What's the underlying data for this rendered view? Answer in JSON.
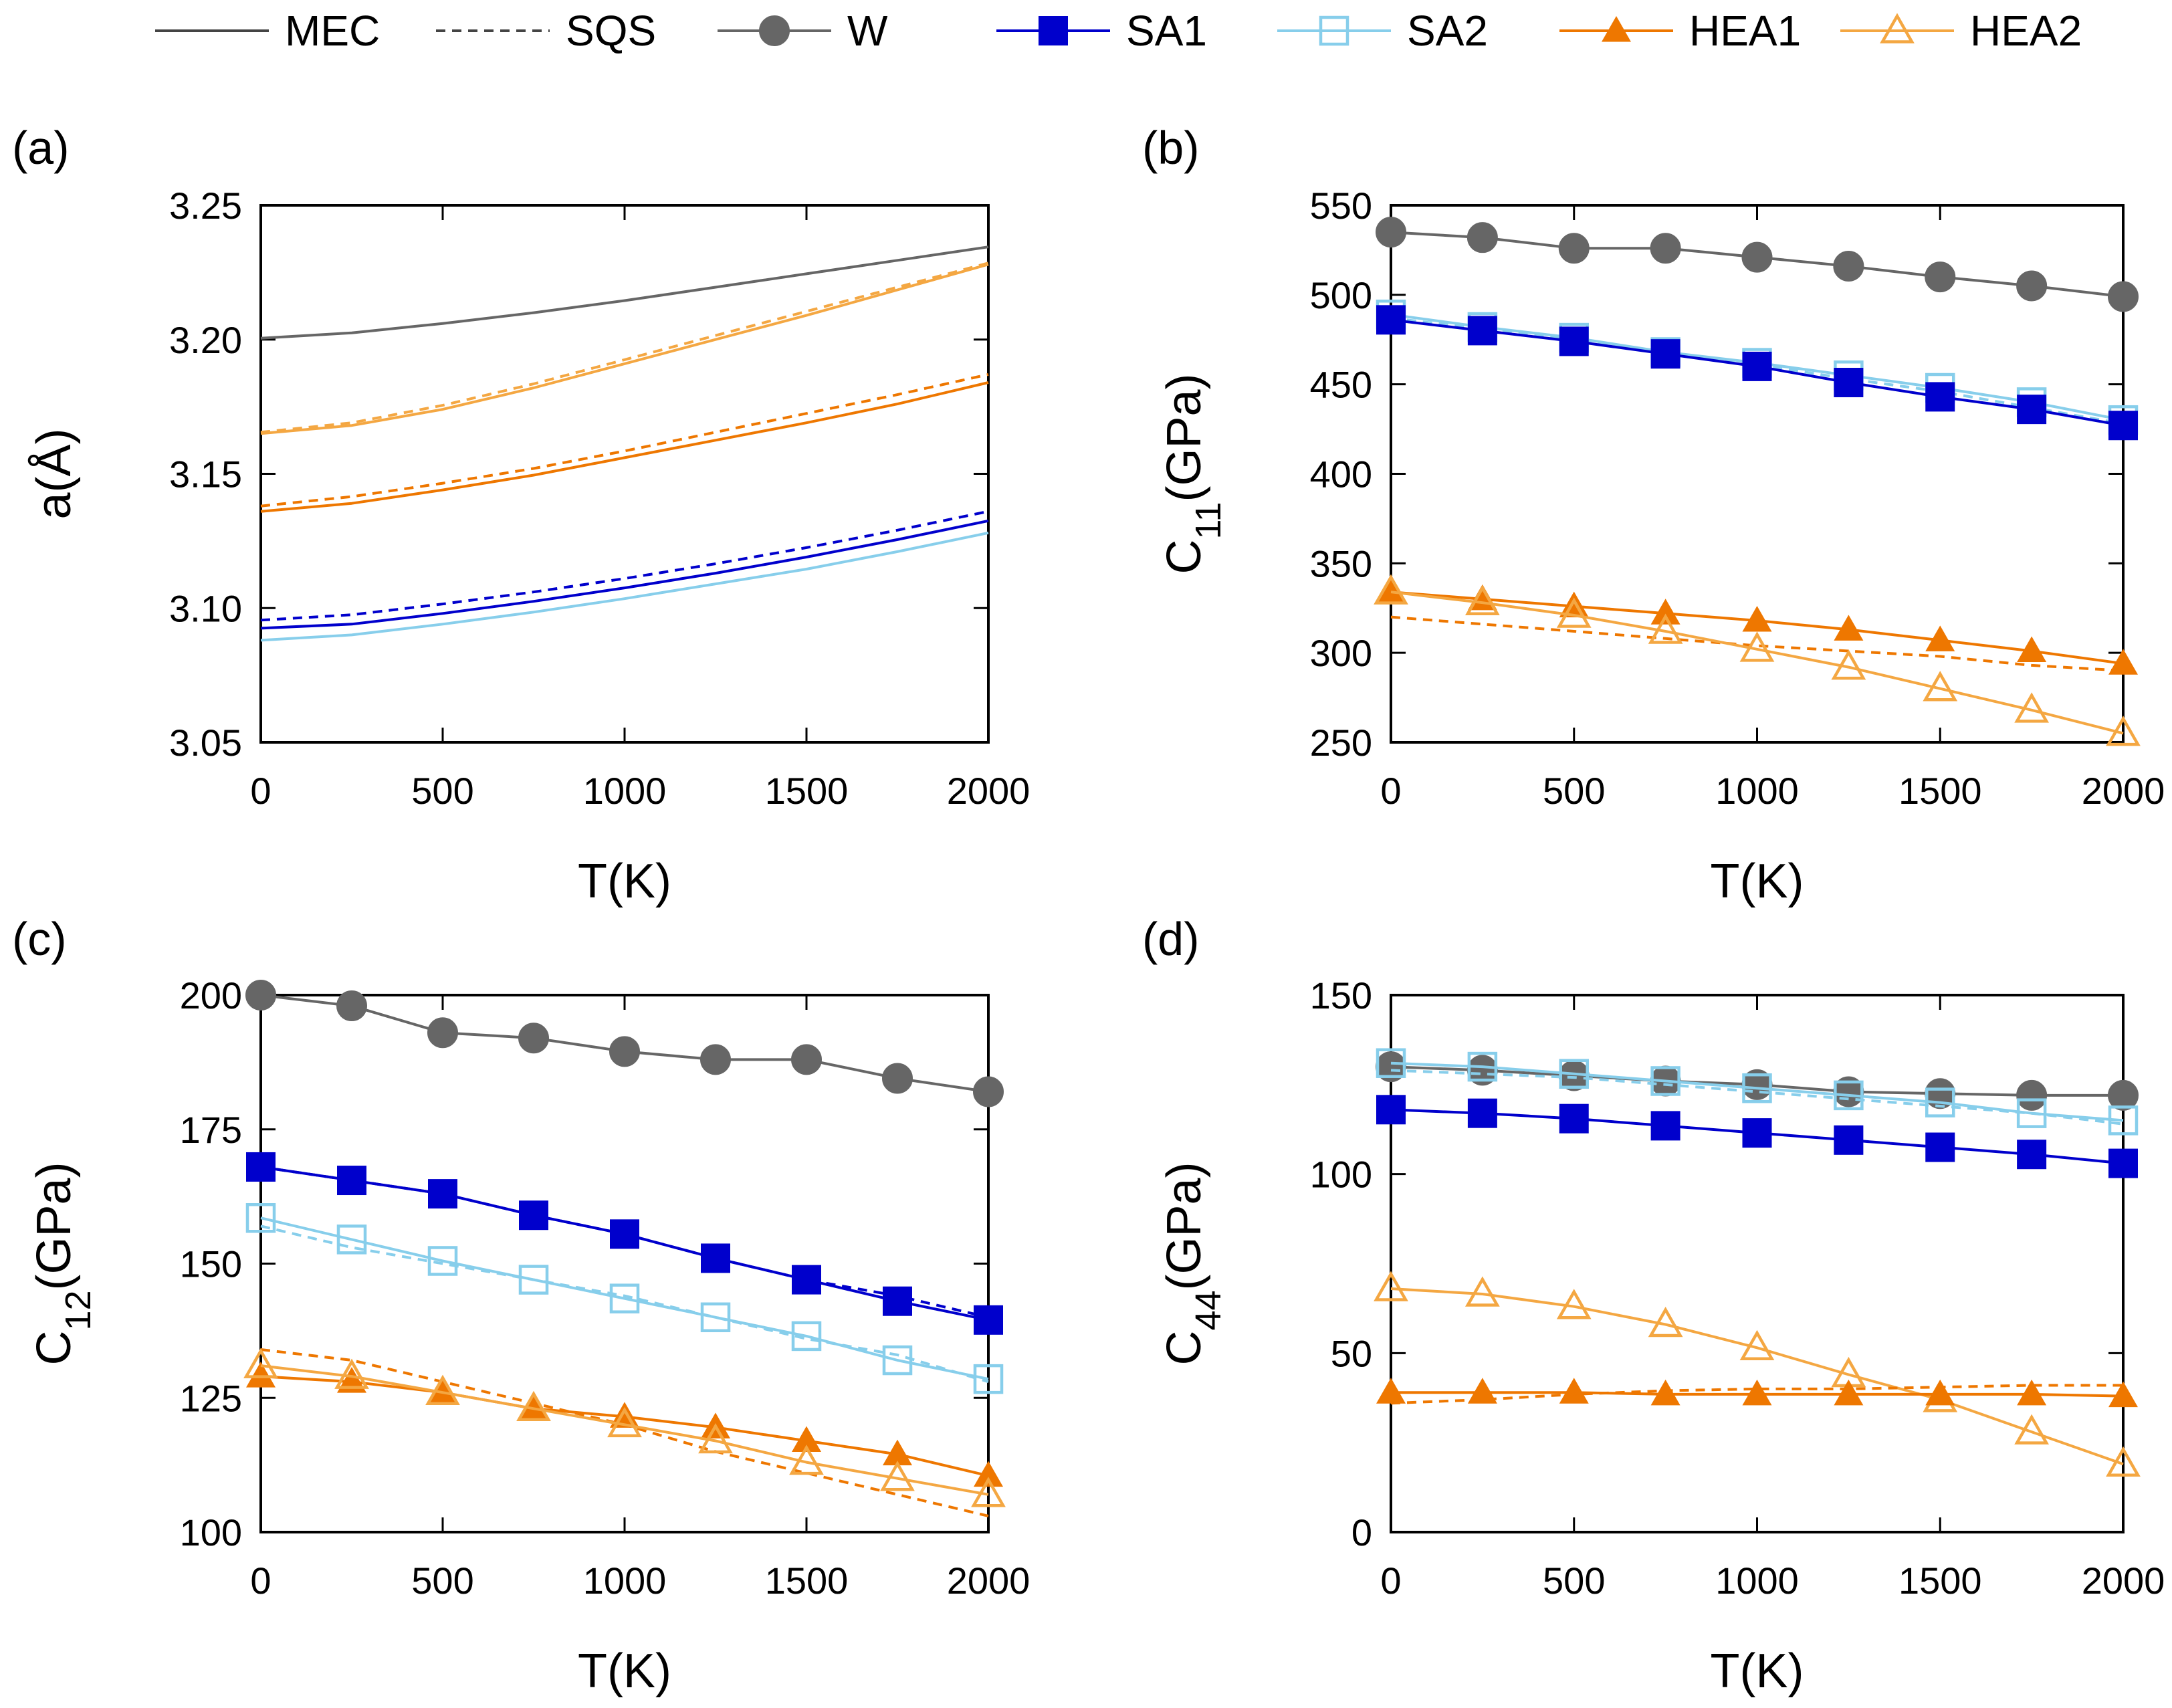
{
  "legend": {
    "items": [
      {
        "key": "MEC",
        "label": "MEC",
        "color": "#444444",
        "dash": false,
        "marker": "none"
      },
      {
        "key": "SQS",
        "label": "SQS",
        "color": "#444444",
        "dash": true,
        "marker": "none"
      },
      {
        "key": "W",
        "label": "W",
        "color": "#666666",
        "dash": false,
        "marker": "circle"
      },
      {
        "key": "SA1",
        "label": "SA1",
        "color": "#0000cc",
        "dash": false,
        "marker": "square"
      },
      {
        "key": "SA2",
        "label": "SA2",
        "color": "#87ceeb",
        "dash": false,
        "marker": "square-open"
      },
      {
        "key": "HEA1",
        "label": "HEA1",
        "color": "#ee7700",
        "dash": false,
        "marker": "triangle"
      },
      {
        "key": "HEA2",
        "label": "HEA2",
        "color": "#f4a742",
        "dash": false,
        "marker": "triangle-open"
      }
    ]
  },
  "chart_data": [
    {
      "panel": "(a)",
      "type": "line",
      "xlabel": "T(K)",
      "ylabel": "a(Å)",
      "xlim": [
        0,
        2000
      ],
      "ylim": [
        3.05,
        3.25
      ],
      "xticks": [
        "0",
        "500",
        "1000",
        "1500",
        "2000"
      ],
      "yticks": [
        "3.05",
        "3.10",
        "3.15",
        "3.20",
        "3.25"
      ],
      "x": [
        0,
        250,
        500,
        750,
        1000,
        1250,
        1500,
        1750,
        2000
      ],
      "series": [
        {
          "name": "W MEC",
          "color": "#666666",
          "dash": false,
          "marker": "none",
          "values": [
            3.2005,
            3.2025,
            3.206,
            3.21,
            3.2145,
            3.2195,
            3.2245,
            3.2295,
            3.2345
          ]
        },
        {
          "name": "HEA2 MEC",
          "color": "#f4a742",
          "dash": false,
          "marker": "none",
          "values": [
            3.165,
            3.168,
            3.174,
            3.182,
            3.191,
            3.2,
            3.209,
            3.2185,
            3.228
          ]
        },
        {
          "name": "HEA2 SQS",
          "color": "#f4a742",
          "dash": true,
          "marker": "none",
          "values": [
            3.1655,
            3.169,
            3.1755,
            3.1835,
            3.1925,
            3.2015,
            3.2105,
            3.2195,
            3.2285
          ]
        },
        {
          "name": "HEA1 MEC",
          "color": "#ee7700",
          "dash": false,
          "marker": "none",
          "values": [
            3.136,
            3.139,
            3.144,
            3.1495,
            3.156,
            3.1625,
            3.169,
            3.176,
            3.184
          ]
        },
        {
          "name": "HEA1 SQS",
          "color": "#ee7700",
          "dash": true,
          "marker": "none",
          "values": [
            3.138,
            3.1415,
            3.1465,
            3.152,
            3.1585,
            3.1655,
            3.1725,
            3.1795,
            3.187
          ]
        },
        {
          "name": "SA1 MEC",
          "color": "#0000cc",
          "dash": false,
          "marker": "none",
          "values": [
            3.0925,
            3.094,
            3.098,
            3.1025,
            3.1075,
            3.113,
            3.119,
            3.1255,
            3.1325
          ]
        },
        {
          "name": "SA1 SQS",
          "color": "#0000cc",
          "dash": true,
          "marker": "none",
          "values": [
            3.0955,
            3.0975,
            3.1015,
            3.106,
            3.111,
            3.1165,
            3.1225,
            3.129,
            3.136
          ]
        },
        {
          "name": "SA2 MEC",
          "color": "#87ceeb",
          "dash": false,
          "marker": "none",
          "values": [
            3.088,
            3.09,
            3.094,
            3.0985,
            3.1035,
            3.109,
            3.1145,
            3.121,
            3.128
          ]
        }
      ]
    },
    {
      "panel": "(b)",
      "type": "line",
      "xlabel": "T(K)",
      "ylabel": "C",
      "ylabel_sub": "11",
      "ylabel_suffix": "(GPa)",
      "xlim": [
        0,
        2000
      ],
      "ylim": [
        250,
        550
      ],
      "xticks": [
        "0",
        "500",
        "1000",
        "1500",
        "2000"
      ],
      "yticks": [
        "250",
        "300",
        "350",
        "400",
        "450",
        "500",
        "550"
      ],
      "x": [
        0,
        250,
        500,
        750,
        1000,
        1250,
        1500,
        1750,
        2000
      ],
      "series": [
        {
          "name": "W",
          "color": "#666666",
          "dash": false,
          "marker": "circle",
          "values": [
            535,
            532,
            526,
            526,
            521,
            516,
            510,
            505,
            499
          ]
        },
        {
          "name": "SA2 MEC",
          "color": "#87ceeb",
          "dash": false,
          "marker": "square-open",
          "values": [
            489,
            482,
            476,
            468,
            462,
            455,
            448,
            440,
            430
          ]
        },
        {
          "name": "SA2 SQS",
          "color": "#87ceeb",
          "dash": true,
          "marker": "none",
          "values": [
            487,
            481,
            475,
            467,
            461,
            453,
            446,
            437,
            428
          ]
        },
        {
          "name": "SA1 MEC",
          "color": "#0000cc",
          "dash": false,
          "marker": "square",
          "values": [
            486,
            480,
            474,
            467,
            460,
            451,
            443,
            436,
            427
          ]
        },
        {
          "name": "HEA1 MEC",
          "color": "#ee7700",
          "dash": false,
          "marker": "triangle",
          "values": [
            334,
            330,
            326,
            322,
            318,
            313,
            307,
            301,
            294
          ]
        },
        {
          "name": "HEA1 SQS",
          "color": "#ee7700",
          "dash": true,
          "marker": "none",
          "values": [
            320,
            316,
            312,
            308,
            304,
            301,
            298,
            293,
            290
          ]
        },
        {
          "name": "HEA2 MEC",
          "color": "#f4a742",
          "dash": false,
          "marker": "triangle-open",
          "values": [
            334,
            328,
            321,
            312,
            302,
            292,
            280,
            268,
            255
          ]
        }
      ]
    },
    {
      "panel": "(c)",
      "type": "line",
      "xlabel": "T(K)",
      "ylabel": "C",
      "ylabel_sub": "12",
      "ylabel_suffix": "(GPa)",
      "xlim": [
        0,
        2000
      ],
      "ylim": [
        100,
        200
      ],
      "xticks": [
        "0",
        "500",
        "1000",
        "1500",
        "2000"
      ],
      "yticks": [
        "100",
        "125",
        "150",
        "175",
        "200"
      ],
      "x": [
        0,
        250,
        500,
        750,
        1000,
        1250,
        1500,
        1750,
        2000
      ],
      "series": [
        {
          "name": "W",
          "color": "#666666",
          "dash": false,
          "marker": "circle",
          "values": [
            200,
            198,
            193,
            192,
            189.5,
            188,
            188,
            184.5,
            182
          ]
        },
        {
          "name": "SA1 MEC",
          "color": "#0000cc",
          "dash": false,
          "marker": "square",
          "values": [
            168,
            165.5,
            163,
            159,
            155.5,
            151,
            147,
            143,
            139.5
          ]
        },
        {
          "name": "SA1 SQS",
          "color": "#0000cc",
          "dash": true,
          "marker": "none",
          "values": [
            168,
            165.5,
            163,
            159,
            155.5,
            151,
            147,
            144,
            140
          ]
        },
        {
          "name": "SA2 MEC",
          "color": "#87ceeb",
          "dash": false,
          "marker": "square-open",
          "values": [
            158.5,
            154.5,
            150.5,
            147,
            143.5,
            140,
            136.5,
            132,
            128.5
          ]
        },
        {
          "name": "SA2 SQS",
          "color": "#87ceeb",
          "dash": true,
          "marker": "none",
          "values": [
            157,
            153,
            150,
            147,
            144,
            140,
            136,
            133,
            128
          ]
        },
        {
          "name": "HEA1 MEC",
          "color": "#ee7700",
          "dash": false,
          "marker": "triangle",
          "values": [
            129,
            128,
            126,
            123,
            121.5,
            119.5,
            117,
            114.5,
            110.5
          ]
        },
        {
          "name": "HEA1 SQS",
          "color": "#ee7700",
          "dash": true,
          "marker": "none",
          "values": [
            134,
            132,
            128,
            124,
            120,
            115,
            111,
            107,
            103
          ]
        },
        {
          "name": "HEA2 MEC",
          "color": "#f4a742",
          "dash": false,
          "marker": "triangle-open",
          "values": [
            131,
            129,
            126,
            123,
            120,
            117,
            113,
            110,
            107
          ]
        }
      ]
    },
    {
      "panel": "(d)",
      "type": "line",
      "xlabel": "T(K)",
      "ylabel": "C",
      "ylabel_sub": "44",
      "ylabel_suffix": "(GPa)",
      "xlim": [
        0,
        2000
      ],
      "ylim": [
        0,
        150
      ],
      "xticks": [
        "0",
        "500",
        "1000",
        "1500",
        "2000"
      ],
      "yticks": [
        "0",
        "50",
        "100",
        "150"
      ],
      "x": [
        0,
        250,
        500,
        750,
        1000,
        1250,
        1500,
        1750,
        2000
      ],
      "series": [
        {
          "name": "W",
          "color": "#666666",
          "dash": false,
          "marker": "circle",
          "values": [
            130,
            129,
            127.5,
            126,
            125,
            123,
            122.5,
            122,
            122
          ]
        },
        {
          "name": "SA2 MEC",
          "color": "#87ceeb",
          "dash": false,
          "marker": "square-open",
          "values": [
            131,
            130,
            128,
            126,
            124,
            122,
            120,
            117,
            115
          ]
        },
        {
          "name": "SA2 SQS",
          "color": "#87ceeb",
          "dash": true,
          "marker": "none",
          "values": [
            129,
            128,
            127,
            125,
            123,
            121,
            119,
            117,
            114
          ]
        },
        {
          "name": "SA1 MEC",
          "color": "#0000cc",
          "dash": false,
          "marker": "square",
          "values": [
            118,
            117,
            115.5,
            113.5,
            111.5,
            109.5,
            107.5,
            105.5,
            103
          ]
        },
        {
          "name": "HEA2 MEC",
          "color": "#f4a742",
          "dash": false,
          "marker": "triangle-open",
          "values": [
            68,
            66.5,
            63,
            58,
            51.5,
            44,
            37,
            28,
            19
          ]
        },
        {
          "name": "HEA1 MEC",
          "color": "#ee7700",
          "dash": false,
          "marker": "triangle",
          "values": [
            39,
            39,
            39,
            38.5,
            38.5,
            38.5,
            38.5,
            38.5,
            38
          ]
        },
        {
          "name": "HEA1 SQS",
          "color": "#ee7700",
          "dash": true,
          "marker": "none",
          "values": [
            36,
            37,
            38.5,
            39.5,
            40,
            40,
            40.5,
            41,
            41
          ]
        }
      ]
    }
  ]
}
